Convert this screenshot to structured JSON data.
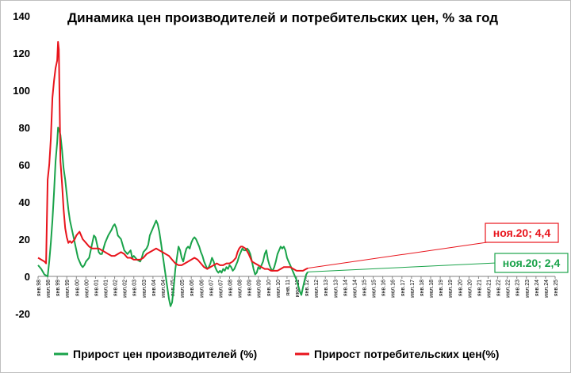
{
  "chart_data": {
    "type": "line",
    "title": "Динамика цен производителей и потребительских цен, % за год",
    "xlabel": "",
    "ylabel": "",
    "ylim": [
      -20,
      140
    ],
    "yticks": [
      -20,
      0,
      20,
      40,
      60,
      80,
      100,
      120,
      140
    ],
    "grid": false,
    "legend_position": "bottom",
    "x_ticks": [
      "янв.98",
      "июл.98",
      "янв.99",
      "июл.99",
      "янв.00",
      "июл.00",
      "янв.01",
      "июл.01",
      "янв.02",
      "июл.02",
      "янв.03",
      "июл.03",
      "янв.04",
      "июл.04",
      "янв.05",
      "июл.05",
      "янв.06",
      "июл.06",
      "янв.07",
      "июл.07",
      "янв.08",
      "июл.08",
      "янв.09",
      "июл.09",
      "янв.10",
      "июл.10",
      "янв.11",
      "июл.11",
      "янв.12",
      "июл.12",
      "янв.13",
      "июл.13",
      "янв.14",
      "июл.14",
      "янв.15",
      "июл.15",
      "янв.16",
      "июл.16",
      "янв.17",
      "июл.17",
      "янв.18",
      "июл.18",
      "янв.19",
      "июл.19",
      "янв.20",
      "июл.20",
      "янв.21",
      "июл.21",
      "янв.22",
      "июл.22",
      "янв.23",
      "июл.23",
      "янв.24",
      "июл.24",
      "янв.25"
    ],
    "series": [
      {
        "name": "Прирост цен производителей (%)",
        "color": "#1aa34a",
        "values": [
          [
            0,
            6
          ],
          [
            2,
            4
          ],
          [
            4,
            1
          ],
          [
            6,
            0
          ],
          [
            7,
            8
          ],
          [
            8,
            18
          ],
          [
            9,
            30
          ],
          [
            10,
            45
          ],
          [
            11,
            62
          ],
          [
            12,
            72
          ],
          [
            12.5,
            80
          ],
          [
            13,
            79
          ],
          [
            14,
            76
          ],
          [
            15,
            68
          ],
          [
            16,
            58
          ],
          [
            17,
            52
          ],
          [
            18,
            44
          ],
          [
            19,
            36
          ],
          [
            20,
            30
          ],
          [
            22,
            22
          ],
          [
            24,
            14
          ],
          [
            25,
            10
          ],
          [
            26,
            8
          ],
          [
            27,
            6
          ],
          [
            28,
            5
          ],
          [
            29,
            6
          ],
          [
            30,
            8
          ],
          [
            32,
            10
          ],
          [
            34,
            18
          ],
          [
            35,
            22
          ],
          [
            36,
            21
          ],
          [
            37,
            17
          ],
          [
            38,
            13
          ],
          [
            39,
            12
          ],
          [
            40,
            12
          ],
          [
            42,
            18
          ],
          [
            44,
            22
          ],
          [
            46,
            25
          ],
          [
            47,
            27
          ],
          [
            48,
            28
          ],
          [
            49,
            26
          ],
          [
            50,
            22
          ],
          [
            52,
            20
          ],
          [
            54,
            14
          ],
          [
            56,
            12
          ],
          [
            58,
            14
          ],
          [
            59,
            10
          ],
          [
            60,
            11
          ],
          [
            62,
            9
          ],
          [
            64,
            8
          ],
          [
            65,
            10
          ],
          [
            66,
            13
          ],
          [
            68,
            15
          ],
          [
            69,
            17
          ],
          [
            70,
            22
          ],
          [
            72,
            26
          ],
          [
            73,
            28
          ],
          [
            74,
            30
          ],
          [
            75,
            28
          ],
          [
            76,
            24
          ],
          [
            77,
            18
          ],
          [
            78,
            12
          ],
          [
            79,
            6
          ],
          [
            80,
            0
          ],
          [
            81,
            -6
          ],
          [
            82,
            -12
          ],
          [
            83,
            -16
          ],
          [
            84,
            -14
          ],
          [
            85,
            -6
          ],
          [
            86,
            4
          ],
          [
            87,
            10
          ],
          [
            88,
            16
          ],
          [
            89,
            14
          ],
          [
            90,
            10
          ],
          [
            91,
            8
          ],
          [
            92,
            12
          ],
          [
            93,
            15
          ],
          [
            94,
            16
          ],
          [
            95,
            15
          ],
          [
            96,
            18
          ],
          [
            97,
            20
          ],
          [
            98,
            21
          ],
          [
            99,
            20
          ],
          [
            100,
            18
          ],
          [
            101,
            16
          ],
          [
            102,
            13
          ],
          [
            103,
            11
          ],
          [
            104,
            8
          ],
          [
            105,
            6
          ],
          [
            106,
            4
          ],
          [
            107,
            5
          ],
          [
            108,
            7
          ],
          [
            109,
            10
          ],
          [
            110,
            8
          ],
          [
            111,
            5
          ],
          [
            112,
            3
          ],
          [
            113,
            2
          ],
          [
            114,
            3
          ],
          [
            115,
            2
          ],
          [
            116,
            4
          ],
          [
            117,
            3
          ],
          [
            118,
            5
          ],
          [
            119,
            4
          ],
          [
            120,
            6
          ],
          [
            121,
            5
          ],
          [
            122,
            3
          ],
          [
            123,
            4
          ],
          [
            124,
            6
          ],
          [
            125,
            8
          ],
          [
            126,
            11
          ],
          [
            127,
            13
          ],
          [
            128,
            15
          ],
          [
            129,
            14
          ],
          [
            130,
            14
          ],
          [
            131,
            15
          ],
          [
            132,
            14
          ],
          [
            133,
            12
          ],
          [
            134,
            8
          ],
          [
            135,
            4
          ],
          [
            136,
            1
          ],
          [
            137,
            2
          ],
          [
            138,
            5
          ],
          [
            139,
            4
          ],
          [
            140,
            6
          ],
          [
            141,
            8
          ],
          [
            142,
            12
          ],
          [
            143,
            14
          ],
          [
            144,
            9
          ],
          [
            145,
            6
          ],
          [
            146,
            4
          ],
          [
            147,
            3
          ],
          [
            148,
            5
          ],
          [
            149,
            8
          ],
          [
            150,
            12
          ],
          [
            151,
            14
          ],
          [
            152,
            16
          ],
          [
            153,
            15
          ],
          [
            154,
            16
          ],
          [
            155,
            14
          ],
          [
            156,
            10
          ],
          [
            157,
            8
          ],
          [
            158,
            6
          ],
          [
            159,
            4
          ],
          [
            160,
            2
          ],
          [
            161,
            0
          ],
          [
            162,
            -2
          ],
          [
            163,
            -5
          ],
          [
            164,
            -8
          ],
          [
            165,
            -10
          ],
          [
            166,
            -6
          ],
          [
            167,
            -2
          ],
          [
            168,
            1
          ],
          [
            169,
            2.4
          ]
        ]
      },
      {
        "name": "Прирост потребительских цен(%)",
        "color": "#e8141c",
        "values": [
          [
            0,
            10
          ],
          [
            2,
            9
          ],
          [
            4,
            8
          ],
          [
            5,
            7
          ],
          [
            6,
            52
          ],
          [
            7,
            60
          ],
          [
            8,
            74
          ],
          [
            9,
            96
          ],
          [
            10,
            105
          ],
          [
            11,
            112
          ],
          [
            12,
            116
          ],
          [
            12.5,
            126
          ],
          [
            13,
            122
          ],
          [
            14,
            62
          ],
          [
            15,
            50
          ],
          [
            16,
            36
          ],
          [
            17,
            26
          ],
          [
            18,
            21
          ],
          [
            19,
            18
          ],
          [
            20,
            19
          ],
          [
            21,
            18
          ],
          [
            22,
            19
          ],
          [
            23,
            20
          ],
          [
            24,
            22
          ],
          [
            25,
            23
          ],
          [
            26,
            24
          ],
          [
            27,
            22
          ],
          [
            28,
            20
          ],
          [
            29,
            19
          ],
          [
            30,
            18
          ],
          [
            32,
            16
          ],
          [
            34,
            15
          ],
          [
            36,
            15
          ],
          [
            38,
            15
          ],
          [
            40,
            14
          ],
          [
            42,
            13
          ],
          [
            44,
            12
          ],
          [
            46,
            11
          ],
          [
            48,
            11
          ],
          [
            50,
            12
          ],
          [
            52,
            13
          ],
          [
            54,
            12
          ],
          [
            56,
            10
          ],
          [
            58,
            10
          ],
          [
            60,
            9
          ],
          [
            62,
            9
          ],
          [
            64,
            9
          ],
          [
            66,
            10
          ],
          [
            68,
            12
          ],
          [
            70,
            13
          ],
          [
            72,
            14
          ],
          [
            74,
            15
          ],
          [
            76,
            14
          ],
          [
            78,
            13
          ],
          [
            80,
            12
          ],
          [
            82,
            11
          ],
          [
            84,
            9
          ],
          [
            86,
            7
          ],
          [
            88,
            6
          ],
          [
            90,
            6
          ],
          [
            92,
            7
          ],
          [
            94,
            8
          ],
          [
            96,
            9
          ],
          [
            98,
            10
          ],
          [
            100,
            9
          ],
          [
            102,
            7
          ],
          [
            104,
            5
          ],
          [
            106,
            4
          ],
          [
            108,
            5
          ],
          [
            110,
            6
          ],
          [
            112,
            7
          ],
          [
            114,
            6
          ],
          [
            116,
            6
          ],
          [
            118,
            7
          ],
          [
            120,
            7
          ],
          [
            122,
            8
          ],
          [
            124,
            10
          ],
          [
            125,
            13
          ],
          [
            126,
            15
          ],
          [
            127,
            16
          ],
          [
            128,
            16
          ],
          [
            130,
            15
          ],
          [
            132,
            12
          ],
          [
            134,
            8
          ],
          [
            136,
            7
          ],
          [
            138,
            6
          ],
          [
            140,
            5
          ],
          [
            142,
            4
          ],
          [
            144,
            4
          ],
          [
            146,
            3
          ],
          [
            148,
            3
          ],
          [
            150,
            3
          ],
          [
            152,
            4
          ],
          [
            154,
            5
          ],
          [
            156,
            5
          ],
          [
            158,
            5
          ],
          [
            160,
            4
          ],
          [
            162,
            3
          ],
          [
            164,
            3
          ],
          [
            166,
            3
          ],
          [
            168,
            4
          ],
          [
            169,
            4.4
          ]
        ]
      }
    ],
    "annotations": [
      {
        "text": "ноя.20; 4,4",
        "series": "Прирост потребительских цен(%)",
        "color": "#e8141c"
      },
      {
        "text": "ноя.20; 2,4",
        "series": "Прирост цен производителей (%)",
        "color": "#1aa34a"
      }
    ]
  }
}
